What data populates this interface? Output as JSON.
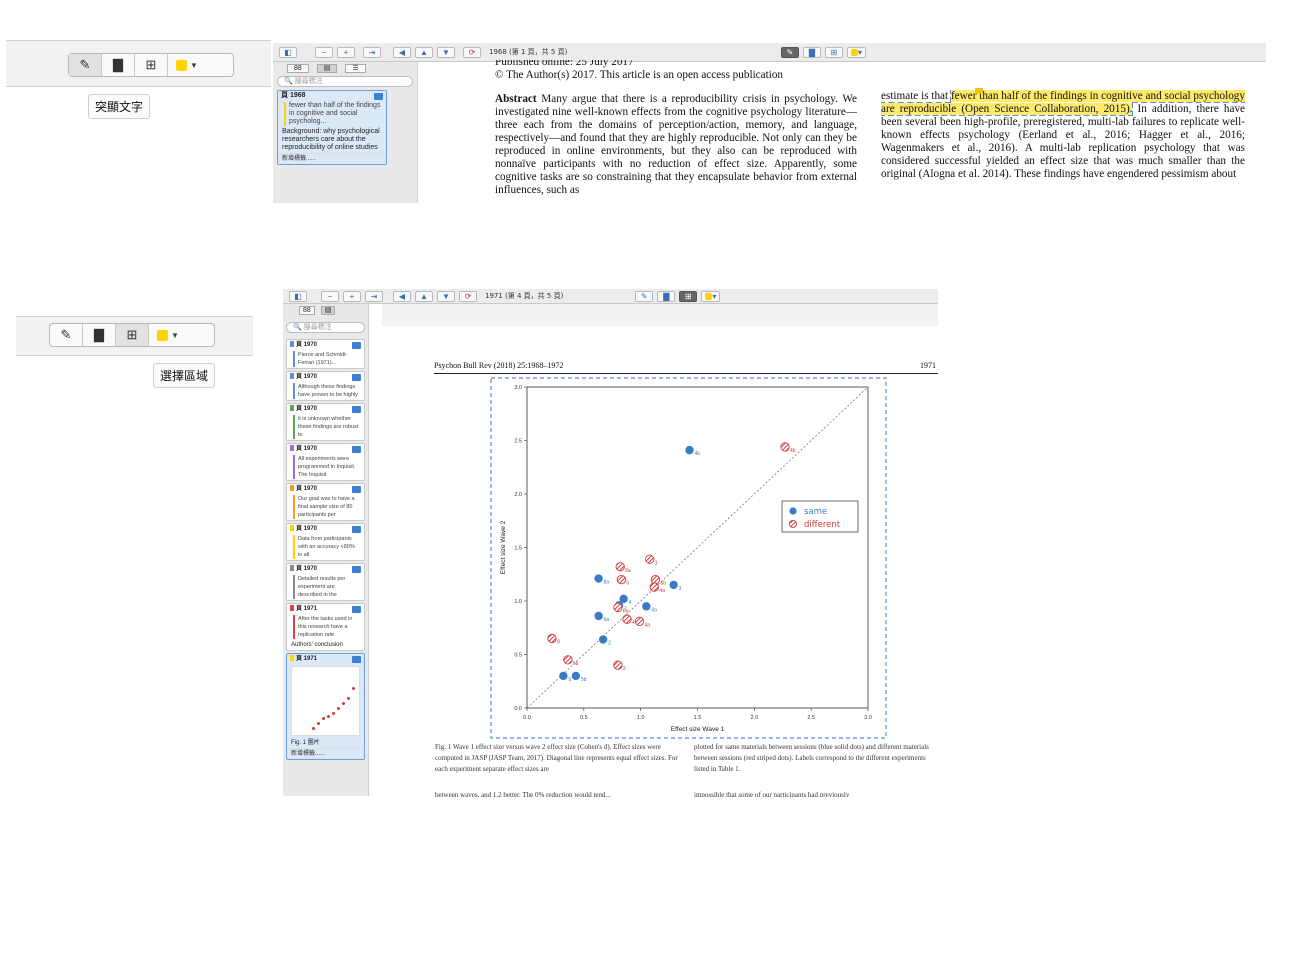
{
  "top_toolbar": {
    "pen_icon": "pen-icon",
    "tooltip": "突顯文字"
  },
  "bottom_toolbar": {
    "tooltip": "選擇區域"
  },
  "top_window": {
    "page_info": "1968  (第 1 頁，共 5 頁)",
    "search_placeholder": "搜尋標注",
    "annotation": {
      "page": "頁 1968",
      "highlight": "fewer than half of the findings in cognitive and social psycholog...",
      "comment": "Background: why psychological researchers care about the reproducibility of online studies",
      "tags": "新增標籤......"
    },
    "doc_left": {
      "published": "Published online: 25 July 2017",
      "copyright": "© The Author(s) 2017. This article is an open access publication",
      "abstract_label": "Abstract",
      "abstract_text": "Many argue that there is a reproducibility crisis in psychology. We investigated nine well-known effects from the cognitive psychology literature—three each from the domains of perception/action, memory, and language, respectively—and found that they are highly reproducible. Not only can they be reproduced in online environments, but they also can be reproduced with nonnaïve participants with no reduction of effect size. Apparently, some cognitive tasks are so constraining that they encapsulate behavior from external influences, such as"
    },
    "doc_right": {
      "pre": "estimate is that ",
      "highlighted": "fewer than half of the findings in cognitive and social psychology are reproducible (Open Science Collaboration, 2015).",
      "post": " In addition, there have been several been high-profile, preregistered, multi-lab failures to replicate well-known effects psychology (Eerland et al., 2016; Hagger et al., 2016; Wagenmakers et al., 2016). A multi-lab replication psychology that was considered successful yielded an effect size that was much smaller than the original (Alogna et al. 2014). These findings have engendered pessimism about"
    }
  },
  "bottom_window": {
    "page_info": "1971  (第 4 頁，共 5 頁)",
    "search_placeholder": "搜尋標注",
    "annotations": [
      {
        "page": "頁 1970",
        "color": "#5b8fd6",
        "text": "Pierce and Schmidt-Ferrari (1971)...",
        "comment": ""
      },
      {
        "page": "頁 1970",
        "color": "#5b8fd6",
        "text": "Although these findings have proven to be highly",
        "comment": ""
      },
      {
        "page": "頁 1970",
        "color": "#5aa64a",
        "text": "it is unknown whether these findings are robust to",
        "comment": ""
      },
      {
        "page": "頁 1970",
        "color": "#9a6fd0",
        "text": "All experiments were programmed in Inquisit. The Inquisit",
        "comment": ""
      },
      {
        "page": "頁 1970",
        "color": "#f0a020",
        "text": "Our goal was to have a final sample size of 80 participants per",
        "comment": ""
      },
      {
        "page": "頁 1970",
        "color": "#ffd400",
        "text": "Data from participants with an accuracy <80% in all",
        "comment": ""
      },
      {
        "page": "頁 1970",
        "color": "#888888",
        "text": "Detailed results per experiment are described in the",
        "comment": ""
      },
      {
        "page": "頁 1971",
        "color": "#e04040",
        "text": "After the tasks used in this research have a replication rate",
        "comment": "Authors' conclusion"
      },
      {
        "page": "頁 1971",
        "color": "#ffd400",
        "text": "",
        "comment": "Fig. 1 圖片"
      }
    ],
    "add_tags": "新增標籤......",
    "page_header_left": "Psychon Bull Rev (2018) 25:1968–1972",
    "page_header_right": "1971",
    "figure_caption_left": "Fig. 1  Wave 1 effect size versus wave 2 effect size (Cohen's d). Effect sizes were computed in JASP (JASP Team, 2017). Diagonal line represents equal effect sizes. For each experiment separate effect sizes are",
    "figure_caption_right": "plotted for same materials between sessions (blue solid dots) and different materials between sessions (red striped dots). Labels correspond to the different experiments listed in Table 1.",
    "bottom_line_left": "between waves, and 1.2 better. The 0% reduction would tend...",
    "bottom_line_right": "impossible that some of our participants had previously"
  },
  "chart_data": {
    "type": "scatter",
    "title": "",
    "xlabel": "Effect size Wave 1",
    "ylabel": "Effect size Wave 2",
    "xlim": [
      0.0,
      3.0
    ],
    "ylim": [
      0.0,
      3.0
    ],
    "xticks": [
      "0.0",
      "0.5",
      "1.0",
      "1.5",
      "2.0",
      "2.5",
      "3.0"
    ],
    "yticks": [
      "0.0",
      "0.5",
      "1.0",
      "1.5",
      "2.0",
      "2.5",
      "3.0"
    ],
    "legend": "right",
    "series": [
      {
        "name": "same",
        "color": "#3a7cc4",
        "points": [
          {
            "x": 1.43,
            "y": 2.41,
            "label": "4b"
          },
          {
            "x": 0.63,
            "y": 1.21,
            "label": "8a"
          },
          {
            "x": 0.85,
            "y": 1.02,
            "label": "4"
          },
          {
            "x": 0.81,
            "y": 0.96,
            "label": "7"
          },
          {
            "x": 1.05,
            "y": 0.95,
            "label": "6b"
          },
          {
            "x": 1.29,
            "y": 1.15,
            "label": "3"
          },
          {
            "x": 0.63,
            "y": 0.86,
            "label": "6a"
          },
          {
            "x": 0.67,
            "y": 0.64,
            "label": "2"
          },
          {
            "x": 0.32,
            "y": 0.3,
            "label": "9"
          },
          {
            "x": 0.43,
            "y": 0.3,
            "label": "5b"
          }
        ]
      },
      {
        "name": "different",
        "color": "#d63a3a",
        "points": [
          {
            "x": 2.27,
            "y": 2.44,
            "label": "4b"
          },
          {
            "x": 1.08,
            "y": 1.39,
            "label": "1"
          },
          {
            "x": 0.82,
            "y": 1.32,
            "label": "8a"
          },
          {
            "x": 0.83,
            "y": 1.2,
            "label": "5"
          },
          {
            "x": 1.13,
            "y": 1.2,
            "label": "6b"
          },
          {
            "x": 1.12,
            "y": 1.13,
            "label": "4a"
          },
          {
            "x": 0.8,
            "y": 0.94,
            "label": "6a"
          },
          {
            "x": 0.88,
            "y": 0.83,
            "label": "4"
          },
          {
            "x": 0.99,
            "y": 0.81,
            "label": "4a"
          },
          {
            "x": 0.22,
            "y": 0.65,
            "label": "9"
          },
          {
            "x": 0.36,
            "y": 0.45,
            "label": "5b"
          },
          {
            "x": 0.8,
            "y": 0.4,
            "label": "2"
          }
        ]
      }
    ]
  }
}
